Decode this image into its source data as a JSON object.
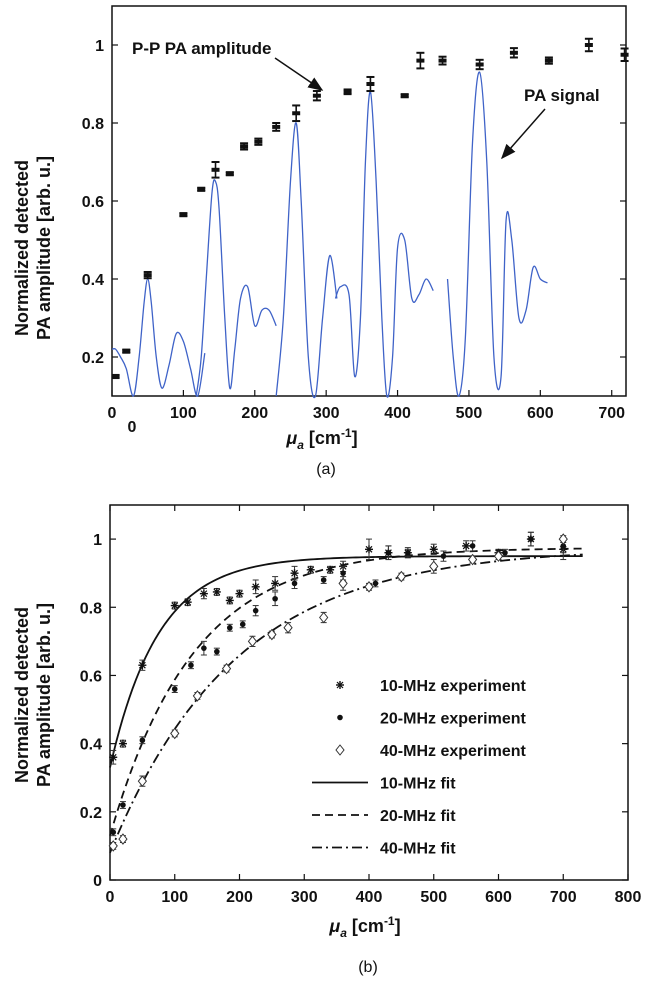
{
  "chart_data": [
    {
      "panel_label": "(a)",
      "type": "scatter",
      "ylabel_line1": "Normalized detected",
      "ylabel_line2": "PA amplitude [arb. u.]",
      "xlabel_main": "μ",
      "xlabel_sub": "a",
      "xlabel_unit": " [cm",
      "xlabel_exp": "-1",
      "xlabel_close": "]",
      "xlim": [
        0,
        720
      ],
      "ylim": [
        0.1,
        1.1
      ],
      "xticks": [
        "0",
        "100",
        "200",
        "300",
        "400",
        "500",
        "600",
        "700"
      ],
      "extra_xtick": "0",
      "yticks": [
        "0.2",
        "0.4",
        "0.6",
        "0.8",
        "1"
      ],
      "annotations": [
        "P-P PA amplitude",
        "PA signal"
      ],
      "series": [
        {
          "type": "errorbar",
          "points": [
            {
              "x": 5,
              "y": 0.15,
              "e": 0.004
            },
            {
              "x": 20,
              "y": 0.215,
              "e": 0.004
            },
            {
              "x": 50,
              "y": 0.41,
              "e": 0.008
            },
            {
              "x": 100,
              "y": 0.565,
              "e": 0.004
            },
            {
              "x": 125,
              "y": 0.63,
              "e": 0.004
            },
            {
              "x": 145,
              "y": 0.68,
              "e": 0.02
            },
            {
              "x": 165,
              "y": 0.67,
              "e": 0.004
            },
            {
              "x": 185,
              "y": 0.74,
              "e": 0.008
            },
            {
              "x": 205,
              "y": 0.752,
              "e": 0.008
            },
            {
              "x": 230,
              "y": 0.79,
              "e": 0.01
            },
            {
              "x": 258,
              "y": 0.825,
              "e": 0.02
            },
            {
              "x": 287,
              "y": 0.87,
              "e": 0.012
            },
            {
              "x": 330,
              "y": 0.88,
              "e": 0.006
            },
            {
              "x": 362,
              "y": 0.9,
              "e": 0.018
            },
            {
              "x": 410,
              "y": 0.87,
              "e": 0.004
            },
            {
              "x": 432,
              "y": 0.96,
              "e": 0.02
            },
            {
              "x": 463,
              "y": 0.96,
              "e": 0.01
            },
            {
              "x": 515,
              "y": 0.95,
              "e": 0.012
            },
            {
              "x": 563,
              "y": 0.98,
              "e": 0.012
            },
            {
              "x": 612,
              "y": 0.96,
              "e": 0.008
            },
            {
              "x": 668,
              "y": 1.0,
              "e": 0.016
            },
            {
              "x": 718,
              "y": 0.975,
              "e": 0.016
            }
          ]
        },
        {
          "type": "waveform",
          "color": "#3f63c8",
          "segments": [
            {
              "x": [
                0,
                5,
                12,
                20,
                30,
                38,
                45,
                50,
                55,
                62,
                70,
                80,
                90,
                100,
                110,
                120,
                130
              ],
              "y": [
                0.22,
                0.22,
                0.2,
                0.17,
                0.1,
                0.2,
                0.34,
                0.4,
                0.34,
                0.2,
                0.12,
                0.18,
                0.26,
                0.24,
                0.17,
                0.1,
                0.21
              ]
            },
            {
              "x": [
                118,
                125,
                132,
                140,
                145,
                150,
                158,
                165,
                172,
                180,
                190,
                200,
                210,
                220,
                230
              ],
              "y": [
                0.1,
                0.2,
                0.4,
                0.62,
                0.65,
                0.58,
                0.3,
                0.12,
                0.22,
                0.35,
                0.38,
                0.28,
                0.32,
                0.32,
                0.28
              ]
            },
            {
              "x": [
                230,
                240,
                250,
                258,
                265,
                275,
                285,
                295,
                305,
                315
              ],
              "y": [
                0.1,
                0.3,
                0.65,
                0.8,
                0.6,
                0.2,
                0.1,
                0.3,
                0.46,
                0.35
              ]
            },
            {
              "x": [
                313,
                320,
                332,
                340,
                348,
                355,
                362,
                370,
                378,
                385,
                393,
                400,
                410,
                420,
                430,
                440,
                450
              ],
              "y": [
                0.35,
                0.38,
                0.36,
                0.15,
                0.3,
                0.7,
                0.88,
                0.65,
                0.3,
                0.1,
                0.2,
                0.48,
                0.5,
                0.35,
                0.36,
                0.4,
                0.37
              ]
            },
            {
              "x": [
                470,
                478,
                486,
                495,
                505,
                515,
                525,
                535,
                545,
                552,
                560,
                570,
                580,
                590,
                600,
                610
              ],
              "y": [
                0.4,
                0.2,
                0.1,
                0.25,
                0.75,
                0.93,
                0.7,
                0.2,
                0.15,
                0.55,
                0.5,
                0.3,
                0.32,
                0.43,
                0.4,
                0.39
              ]
            }
          ]
        }
      ]
    },
    {
      "panel_label": "(b)",
      "type": "scatter",
      "ylabel_line1": "Normalized detected",
      "ylabel_line2": "PA amplitude [arb. u.]",
      "xlabel_main": "μ",
      "xlabel_sub": "a",
      "xlabel_unit": " [cm",
      "xlabel_exp": "-1",
      "xlabel_close": "]",
      "xlim": [
        0,
        800
      ],
      "ylim": [
        0,
        1.1
      ],
      "xticks": [
        "0",
        "100",
        "200",
        "300",
        "400",
        "500",
        "600",
        "700",
        "800"
      ],
      "yticks": [
        "0",
        "0.2",
        "0.4",
        "0.6",
        "0.8",
        "1"
      ],
      "legend": [
        "10-MHz experiment",
        "20-MHz experiment",
        "40-MHz experiment",
        "10-MHz fit",
        "20-MHz fit",
        "40-MHz fit"
      ],
      "series": [
        {
          "name": "10-MHz experiment",
          "marker": "star",
          "points": [
            {
              "x": 5,
              "y": 0.36,
              "e": 0.02
            },
            {
              "x": 20,
              "y": 0.4,
              "e": 0.01
            },
            {
              "x": 50,
              "y": 0.63,
              "e": 0.015
            },
            {
              "x": 100,
              "y": 0.805,
              "e": 0.01
            },
            {
              "x": 120,
              "y": 0.815,
              "e": 0.01
            },
            {
              "x": 145,
              "y": 0.84,
              "e": 0.015
            },
            {
              "x": 165,
              "y": 0.845,
              "e": 0.01
            },
            {
              "x": 185,
              "y": 0.82,
              "e": 0.01
            },
            {
              "x": 200,
              "y": 0.84,
              "e": 0.01
            },
            {
              "x": 225,
              "y": 0.86,
              "e": 0.02
            },
            {
              "x": 255,
              "y": 0.87,
              "e": 0.02
            },
            {
              "x": 285,
              "y": 0.9,
              "e": 0.02
            },
            {
              "x": 310,
              "y": 0.91,
              "e": 0.01
            },
            {
              "x": 340,
              "y": 0.91,
              "e": 0.01
            },
            {
              "x": 360,
              "y": 0.92,
              "e": 0.015
            },
            {
              "x": 400,
              "y": 0.97,
              "e": 0.03
            },
            {
              "x": 430,
              "y": 0.96,
              "e": 0.02
            },
            {
              "x": 460,
              "y": 0.96,
              "e": 0.015
            },
            {
              "x": 500,
              "y": 0.97,
              "e": 0.015
            },
            {
              "x": 550,
              "y": 0.98,
              "e": 0.015
            },
            {
              "x": 600,
              "y": 0.96,
              "e": 0.01
            },
            {
              "x": 650,
              "y": 1.0,
              "e": 0.02
            },
            {
              "x": 700,
              "y": 0.97,
              "e": 0.03
            }
          ]
        },
        {
          "name": "20-MHz experiment",
          "marker": "dot",
          "points": [
            {
              "x": 5,
              "y": 0.14,
              "e": 0.01
            },
            {
              "x": 20,
              "y": 0.22,
              "e": 0.01
            },
            {
              "x": 50,
              "y": 0.41,
              "e": 0.01
            },
            {
              "x": 100,
              "y": 0.56,
              "e": 0.01
            },
            {
              "x": 125,
              "y": 0.63,
              "e": 0.01
            },
            {
              "x": 145,
              "y": 0.68,
              "e": 0.02
            },
            {
              "x": 165,
              "y": 0.67,
              "e": 0.01
            },
            {
              "x": 185,
              "y": 0.74,
              "e": 0.01
            },
            {
              "x": 205,
              "y": 0.75,
              "e": 0.01
            },
            {
              "x": 225,
              "y": 0.79,
              "e": 0.015
            },
            {
              "x": 255,
              "y": 0.825,
              "e": 0.02
            },
            {
              "x": 285,
              "y": 0.87,
              "e": 0.015
            },
            {
              "x": 330,
              "y": 0.88,
              "e": 0.01
            },
            {
              "x": 360,
              "y": 0.9,
              "e": 0.02
            },
            {
              "x": 410,
              "y": 0.87,
              "e": 0.01
            },
            {
              "x": 430,
              "y": 0.96,
              "e": 0.02
            },
            {
              "x": 460,
              "y": 0.96,
              "e": 0.01
            },
            {
              "x": 515,
              "y": 0.95,
              "e": 0.015
            },
            {
              "x": 560,
              "y": 0.98,
              "e": 0.015
            },
            {
              "x": 610,
              "y": 0.96,
              "e": 0.01
            },
            {
              "x": 650,
              "y": 1.0,
              "e": 0.02
            },
            {
              "x": 700,
              "y": 0.98,
              "e": 0.02
            }
          ]
        },
        {
          "name": "40-MHz experiment",
          "marker": "diamond",
          "points": [
            {
              "x": 5,
              "y": 0.1,
              "e": 0.01
            },
            {
              "x": 20,
              "y": 0.12,
              "e": 0.01
            },
            {
              "x": 50,
              "y": 0.29,
              "e": 0.015
            },
            {
              "x": 100,
              "y": 0.43,
              "e": 0.01
            },
            {
              "x": 135,
              "y": 0.54,
              "e": 0.01
            },
            {
              "x": 180,
              "y": 0.62,
              "e": 0.01
            },
            {
              "x": 220,
              "y": 0.7,
              "e": 0.015
            },
            {
              "x": 250,
              "y": 0.72,
              "e": 0.01
            },
            {
              "x": 275,
              "y": 0.74,
              "e": 0.015
            },
            {
              "x": 330,
              "y": 0.77,
              "e": 0.015
            },
            {
              "x": 360,
              "y": 0.87,
              "e": 0.02
            },
            {
              "x": 400,
              "y": 0.86,
              "e": 0.01
            },
            {
              "x": 450,
              "y": 0.89,
              "e": 0.01
            },
            {
              "x": 500,
              "y": 0.92,
              "e": 0.02
            },
            {
              "x": 560,
              "y": 0.94,
              "e": 0.01
            },
            {
              "x": 600,
              "y": 0.95,
              "e": 0.01
            },
            {
              "x": 700,
              "y": 1.0,
              "e": 0.01
            }
          ]
        },
        {
          "name": "10-MHz fit",
          "type": "line",
          "dash": "solid",
          "y0": 0.33,
          "ymax": 0.95,
          "k": 0.0134
        },
        {
          "name": "20-MHz fit",
          "type": "line",
          "dash": "dashed",
          "y0": 0.13,
          "ymax": 0.975,
          "k": 0.0078
        },
        {
          "name": "40-MHz fit",
          "type": "line",
          "dash": "dashdot",
          "y0": 0.08,
          "ymax": 0.975,
          "k": 0.0052
        }
      ]
    }
  ]
}
